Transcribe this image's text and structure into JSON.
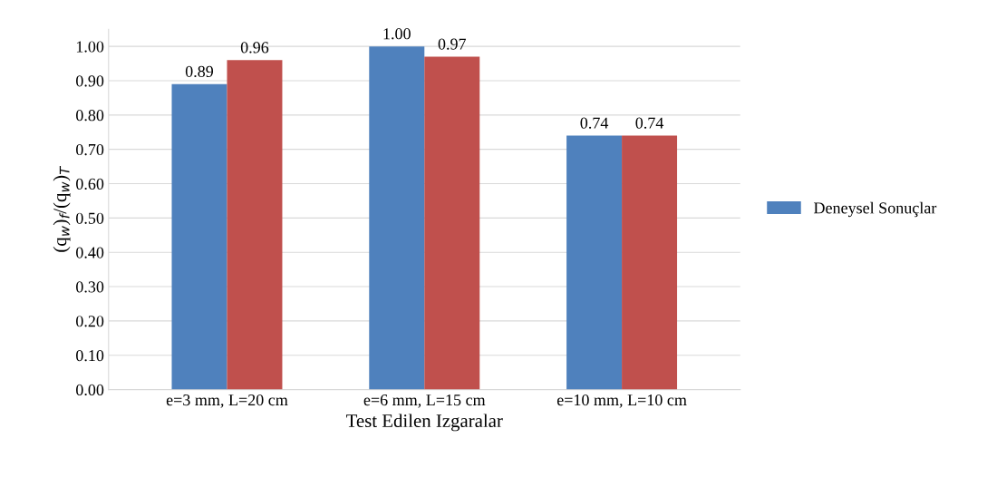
{
  "chart_data": {
    "type": "bar",
    "xlabel": "Test Edilen Izgaralar",
    "ylabel": "(q$_{w}$)$_{f}$/(q$_{w}$)$_{T}$",
    "categories": [
      "e=3 mm, L=20 cm",
      "e=6 mm, L=15 cm",
      "e=10 mm, L=10 cm"
    ],
    "series": [
      {
        "name": "Deneysel Sonuçlar",
        "color": "#4f81bd",
        "values": [
          0.89,
          1.0,
          0.74
        ],
        "value_labels": [
          "0.89",
          "1.00",
          "0.74"
        ]
      },
      {
        "color": "#c0504d",
        "values": [
          0.96,
          0.97,
          0.74
        ],
        "value_labels": [
          "0.96",
          "0.97",
          "0.74"
        ]
      }
    ],
    "ylim": [
      0,
      1.05
    ],
    "yticks": [
      {
        "value": 0,
        "label": "0.00"
      },
      {
        "value": 0.1,
        "label": "0.10"
      },
      {
        "value": 0.2,
        "label": "0.20"
      },
      {
        "value": 0.3,
        "label": "0.30"
      },
      {
        "value": 0.4,
        "label": "0.40"
      },
      {
        "value": 0.5,
        "label": "0.50"
      },
      {
        "value": 0.6,
        "label": "0.60"
      },
      {
        "value": 0.7,
        "label": "0.70"
      },
      {
        "value": 0.8,
        "label": "0.80"
      },
      {
        "value": 0.9,
        "label": "0.90"
      },
      {
        "value": 1.0,
        "label": "1.00"
      }
    ],
    "grid": "y",
    "legend": "right"
  }
}
